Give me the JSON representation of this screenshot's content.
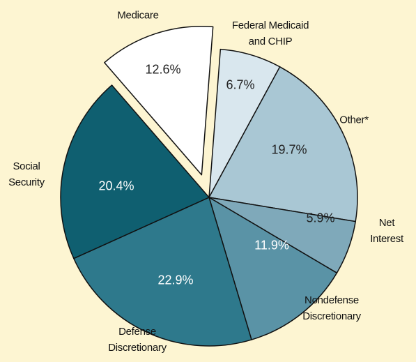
{
  "chart_data": {
    "type": "pie",
    "categories": [
      "Federal Medicaid\nand CHIP",
      "Other*",
      "Net Interest",
      "Nondefense\nDiscretionary",
      "Defense\nDiscretionary",
      "Social\nSecurity",
      "Medicare"
    ],
    "values": [
      6.7,
      19.7,
      5.9,
      11.9,
      22.9,
      20.4,
      12.6
    ],
    "value_labels": [
      "6.7%",
      "19.7%",
      "5.9%",
      "11.9%",
      "22.9%",
      "20.4%",
      "12.6%"
    ],
    "colors": [
      "#d9e7ee",
      "#a9c7d4",
      "#7fa9ba",
      "#5a93a6",
      "#2e798c",
      "#0f5f70",
      "#ffffff"
    ],
    "exploded": [
      "Medicare"
    ]
  }
}
